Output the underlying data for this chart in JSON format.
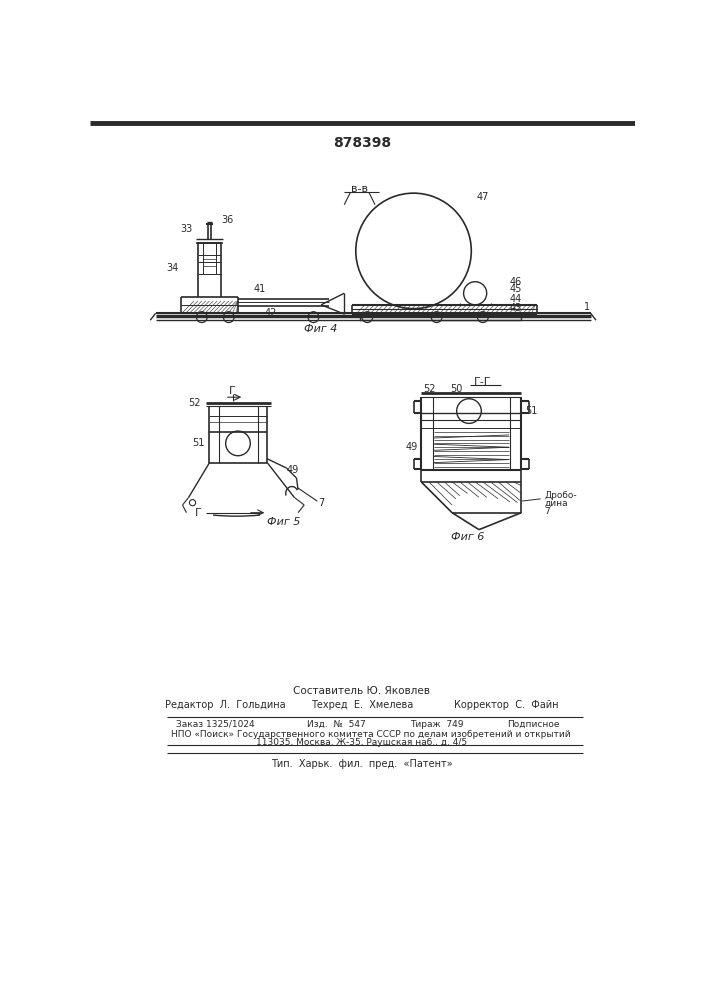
{
  "patent_number": "878398",
  "fig4_label": "Фиг 4",
  "fig5_label": "Фиг 5",
  "fig6_label": "Фиг 6",
  "section_BB": "в-в",
  "section_GG": "Г-Г",
  "section_G": "Г",
  "footer_composer": "Составитель Ю. Яковлев",
  "footer_editor": "Редактор  Л.  Гольдина",
  "footer_techred": "Техред  Е.  Хмелева",
  "footer_corrector": "Корректор  С.  Файн",
  "footer_order": "Заказ 1325/1024",
  "footer_izd": "Изд.  №  547",
  "footer_tirazh": "Тираж  749",
  "footer_podpisnoe": "Подписное",
  "footer_npo": "НПО «Поиск» Государственного комитета СССР по делам изобретений и открытий",
  "footer_address": "113035, Москва, Ж-35, Раушская наб., д. 4/5",
  "footer_tip": "Тип.  Харьк.  фил.  пред.  «Патент»",
  "bg_color": "#ffffff",
  "line_color": "#2a2a2a",
  "text_color": "#2a2a2a"
}
